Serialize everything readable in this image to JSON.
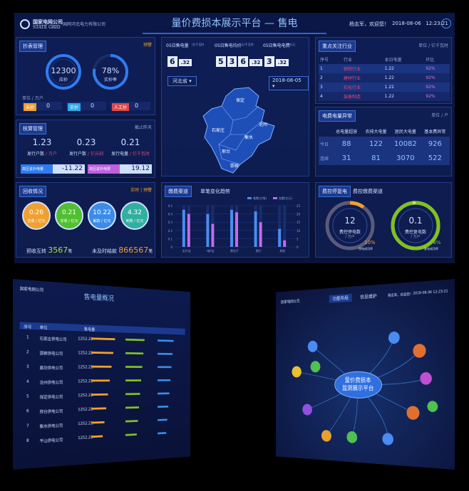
{
  "header": {
    "org": "国家电网公司",
    "org_en": "STATE GRID",
    "company": "国网河北电力有限公司",
    "title": "量价费损本展示平台 — 售电",
    "user": "杨志军，欢迎您！",
    "datetime": "2018-08-06   12:23:21"
  },
  "meter": {
    "title": "抄表管理",
    "alert": "预警",
    "due": "12300",
    "due_label": "应抄",
    "rate": "78%",
    "rate_label": "实抄率",
    "unit": "单位 / 万户",
    "tags": [
      {
        "label": "未抄",
        "value": "0"
      },
      {
        "label": "实抄",
        "value": "0"
      },
      {
        "label": "人工抄",
        "value": "0"
      }
    ]
  },
  "account": {
    "title": "核算管理",
    "note": "截止昨天",
    "items": [
      {
        "value": "1.23",
        "label": "发行户数",
        "unit": "/ 万户"
      },
      {
        "value": "0.23",
        "label": "发行户数",
        "unit": "/ 亿元刻"
      },
      {
        "value": "0.21",
        "label": "发行电量",
        "unit": "/ 亿千瓦时"
      }
    ],
    "bars": [
      {
        "label": "高压进扑电量",
        "value": "-11.22"
      },
      {
        "label": "高压进扑电费",
        "value": "19.12"
      }
    ]
  },
  "recovery": {
    "title": "回收情况",
    "note": "实时 | 预警",
    "items": [
      {
        "value": "0.26",
        "label": "应收 / 亿元"
      },
      {
        "value": "0.21",
        "label": "实收 / 亿元"
      },
      {
        "value": "10.22",
        "label": "解款 / 亿元"
      },
      {
        "value": "4.32",
        "label": "到账 / 亿元"
      }
    ],
    "pre_label": "预收互转",
    "pre_value": "3567",
    "pre_unit": "笔",
    "late_label": "未及时结款",
    "late_value": "866567",
    "late_unit": "笔"
  },
  "kpi": [
    {
      "label": "05日售电量",
      "unit": "/亿千瓦时",
      "digits": [
        "6",
        ".32"
      ]
    },
    {
      "label": "05日售电均价",
      "unit": "/元/千瓦时",
      "digits": [
        "5",
        "3",
        "6",
        ".32"
      ]
    },
    {
      "label": "05日售电电费",
      "unit": "/亿元",
      "digits": [
        "3",
        ".32"
      ]
    }
  ],
  "map": {
    "province": "河北省",
    "date": "2018-08-05",
    "cities": [
      "保定",
      "沧州",
      "石家庄",
      "衡水",
      "邢台",
      "邯郸"
    ]
  },
  "channel": {
    "title": "缴费渠道"
  },
  "chart_data": {
    "type": "bar",
    "title": "单笔变化趋势",
    "categories": [
      "支付宝",
      "电E宝",
      "营业厅",
      "银行",
      "其他"
    ],
    "series": [
      {
        "name": "笔数(亿笔)",
        "color": "#4a8cf0",
        "values": [
          0.45,
          0.4,
          0.45,
          0.43,
          0.22
        ]
      },
      {
        "name": "金额(亿元)",
        "color": "#c06be8",
        "axis": "y2",
        "values": [
          20,
          14,
          21,
          15,
          4
        ]
      }
    ],
    "ylim": [
      0,
      0.5
    ],
    "yticks": [
      0,
      0.1,
      0.2,
      0.3,
      0.4,
      0.5
    ],
    "y2lim": [
      0,
      25
    ],
    "y2ticks": [
      0,
      5,
      10,
      15,
      20,
      25
    ]
  },
  "industry": {
    "title": "重点关注行业",
    "unit": "单位 / 亿千瓦时",
    "columns": [
      "序号",
      "行业",
      "本日电量",
      "环比"
    ],
    "rows": [
      [
        "1",
        "钢铁行业",
        "1.22",
        "92%"
      ],
      [
        "2",
        "建材行业",
        "1.22",
        "92%"
      ],
      [
        "3",
        "石化行业",
        "1.22",
        "92%"
      ],
      [
        "4",
        "装备制造",
        "1.22",
        "92%"
      ]
    ]
  },
  "anomaly": {
    "title": "电费电量异常",
    "unit": "单位 / 户",
    "columns": [
      "总电量超容",
      "农排大电量",
      "居民大电量",
      "基本费异常"
    ],
    "rows": [
      {
        "label": "今日",
        "values": [
          "88",
          "122",
          "10082",
          "926"
        ]
      },
      {
        "label": "连续",
        "values": [
          "31",
          "81",
          "3070",
          "522"
        ]
      }
    ]
  },
  "fee_control": {
    "title": "费控停复电",
    "subtitle": "费控缴费渠道",
    "gauges": [
      {
        "value": "12",
        "label": "费控停电数",
        "unit": "/ 万户",
        "rate": "10%",
        "rate_label": "停电成功率"
      },
      {
        "value": "0.1",
        "label": "费控复电数",
        "unit": "/ 万户",
        "rate": "98%",
        "rate_label": "复电成功率"
      }
    ]
  },
  "screen2": {
    "title": "售电量概况",
    "columns": [
      "序号",
      "单位",
      "售电量"
    ],
    "rows": [
      [
        "1",
        "石家庄供电公司",
        "1252.22"
      ],
      [
        "2",
        "邯郸供电公司",
        "1252.22"
      ],
      [
        "3",
        "廊坊供电公司",
        "1252.22"
      ],
      [
        "4",
        "沧州供电公司",
        "1252.22"
      ],
      [
        "5",
        "保定供电公司",
        "1252.22"
      ],
      [
        "6",
        "邢台供电公司",
        "1252.22"
      ],
      [
        "7",
        "衡水供电公司",
        "1252.22"
      ],
      [
        "8",
        "平山供电公司",
        "1252.22"
      ]
    ]
  },
  "screen3": {
    "tabs": [
      "功能布局",
      "信息维护"
    ],
    "user": "杨志军，欢迎您！",
    "datetime": "2018-08-06 12:23:21",
    "hub": [
      "量价费损本",
      "监测展示平台"
    ]
  }
}
